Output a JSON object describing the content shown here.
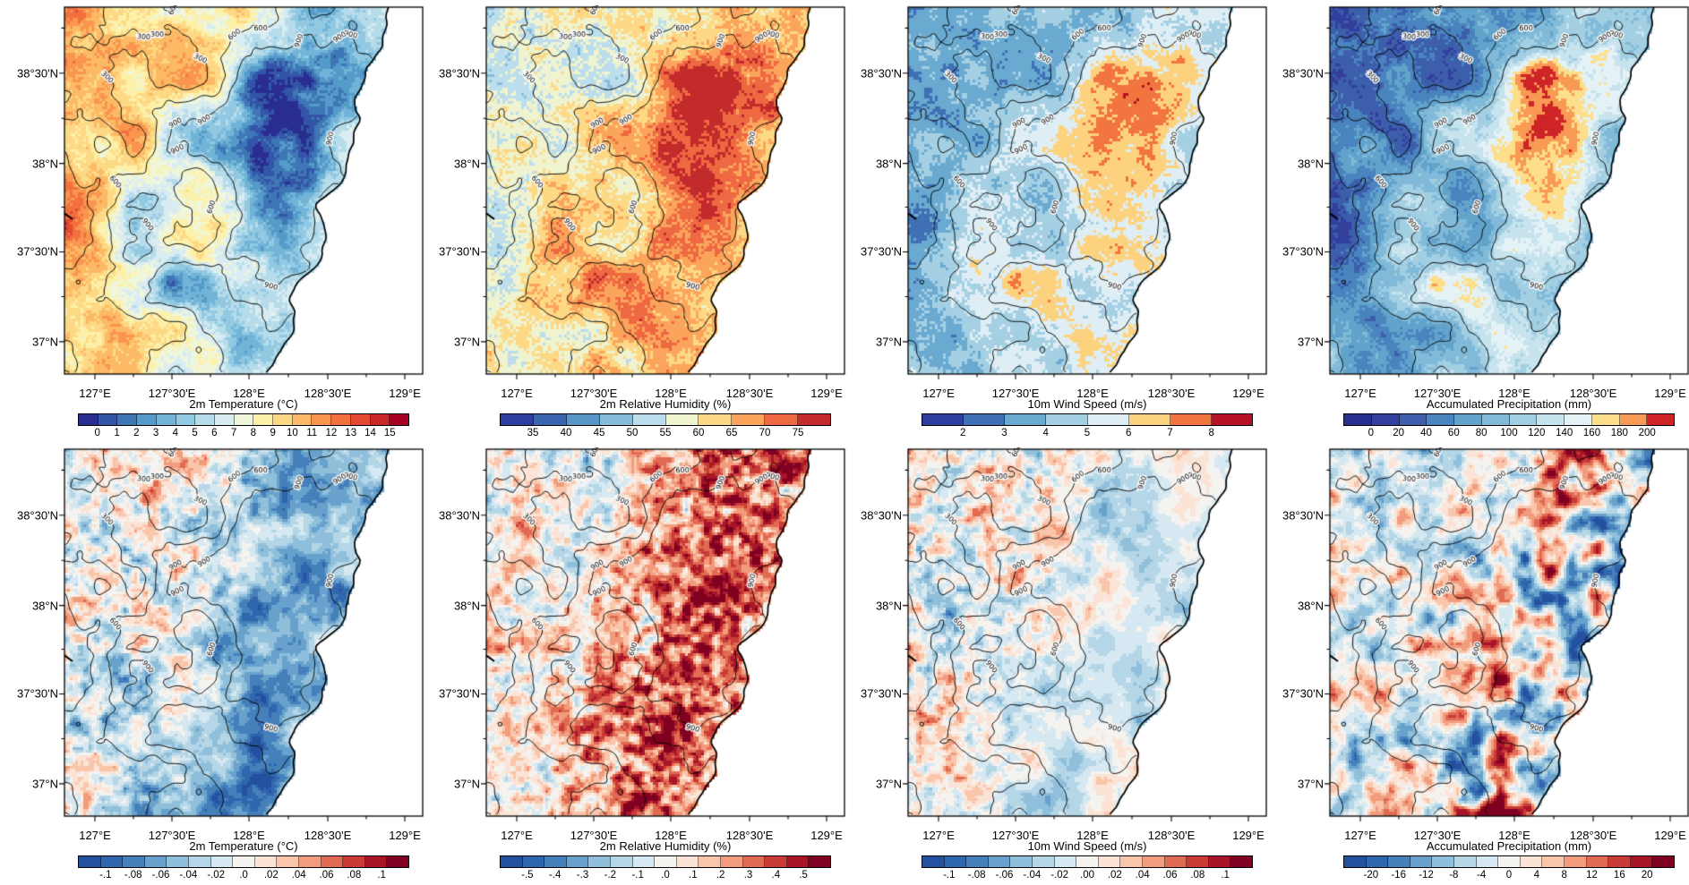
{
  "figure": {
    "axes": {
      "lat_labels": [
        "38°30'N",
        "38°N",
        "37°30'N",
        "37°N"
      ],
      "lon_labels": [
        "127°E",
        "127°30'E",
        "128°E",
        "128°30'E",
        "129°E"
      ]
    },
    "contour_labels": [
      "300",
      "600",
      "900"
    ],
    "panels": [
      {
        "id": "t2m",
        "title": "2m Temperature  (°C)",
        "ticks": [
          "0",
          "1",
          "2",
          "3",
          "4",
          "5",
          "6",
          "7",
          "8",
          "9",
          "10",
          "11",
          "12",
          "13",
          "14",
          "15"
        ],
        "colors": [
          "#2a2d90",
          "#3355a7",
          "#3f76b6",
          "#559bc9",
          "#71b4d7",
          "#92c9e2",
          "#b6dcea",
          "#d9ecf2",
          "#eff6da",
          "#fdf0a9",
          "#fdd985",
          "#fcba66",
          "#f9954e",
          "#f26f3e",
          "#e34a31",
          "#c82827",
          "#a50021"
        ]
      },
      {
        "id": "rh2m",
        "title": "2m Relative Humidity  (%)",
        "ticks": [
          "35",
          "40",
          "45",
          "50",
          "55",
          "60",
          "65",
          "70",
          "75"
        ],
        "colors": [
          "#2f3d9e",
          "#3a66af",
          "#5795c5",
          "#85bcda",
          "#bcdeec",
          "#eff3d0",
          "#fdd985",
          "#fba55c",
          "#ee6841",
          "#c22a2b"
        ]
      },
      {
        "id": "ws10m",
        "title": "10m Wind Speed  (m/s)",
        "ticks": [
          "2",
          "3",
          "4",
          "5",
          "6",
          "7",
          "8"
        ],
        "colors": [
          "#2f3d9e",
          "#3f6fb4",
          "#6aaad0",
          "#a5d0e4",
          "#dfeef4",
          "#fdd27e",
          "#f2753f",
          "#b51225"
        ]
      },
      {
        "id": "precip",
        "title": "Accumulated Precipitation  (mm)",
        "ticks": [
          "0",
          "20",
          "40",
          "60",
          "80",
          "100",
          "120",
          "140",
          "160",
          "180",
          "200"
        ],
        "colors": [
          "#28308f",
          "#323f9d",
          "#3c5eab",
          "#4a84be",
          "#62a3cc",
          "#81bad8",
          "#a3cfe3",
          "#c6e3ee",
          "#e4f2f5",
          "#fdde8a",
          "#f89a54",
          "#cf2427"
        ]
      },
      {
        "id": "t2m_diff",
        "title": "2m Temperature  (°C)",
        "ticks": [
          "-.1",
          "-.08",
          "-.06",
          "-.04",
          "-.02",
          ".0",
          ".02",
          ".04",
          ".06",
          ".08",
          ".1"
        ],
        "colors": [
          "#2450a0",
          "#2f66ad",
          "#4580bb",
          "#68a2cc",
          "#8fbfda",
          "#b4d6e7",
          "#d6e8f1",
          "#f5f3f0",
          "#fbe4d6",
          "#f9c6ab",
          "#f29c7d",
          "#e16b52",
          "#c93b36",
          "#a81529",
          "#7f0020"
        ]
      },
      {
        "id": "rh2m_diff",
        "title": "2m Relative Humidity  (%)",
        "ticks": [
          "-.5",
          "-.4",
          "-.3",
          "-.2",
          "-.1",
          ".0",
          ".1",
          ".2",
          ".3",
          ".4",
          ".5"
        ],
        "colors": [
          "#2450a0",
          "#2f66ad",
          "#4580bb",
          "#68a2cc",
          "#8fbfda",
          "#b4d6e7",
          "#d6e8f1",
          "#f5f3f0",
          "#fbe4d6",
          "#f9c6ab",
          "#f29c7d",
          "#e16b52",
          "#c93b36",
          "#a81529",
          "#7f0020"
        ]
      },
      {
        "id": "ws10m_diff",
        "title": "10m Wind Speed  (m/s)",
        "ticks": [
          "-.1",
          "-.08",
          "-.06",
          "-.04",
          "-.02",
          ".00",
          ".02",
          ".04",
          ".06",
          ".08",
          ".1"
        ],
        "colors": [
          "#2450a0",
          "#2f66ad",
          "#4580bb",
          "#68a2cc",
          "#8fbfda",
          "#b4d6e7",
          "#d6e8f1",
          "#f5f3f0",
          "#fbe4d6",
          "#f9c6ab",
          "#f29c7d",
          "#e16b52",
          "#c93b36",
          "#a81529",
          "#7f0020"
        ]
      },
      {
        "id": "precip_diff",
        "title": "Accumulated Precipitation  (mm)",
        "ticks": [
          "-20",
          "-16",
          "-12",
          "-8",
          "-4",
          "0",
          "4",
          "8",
          "12",
          "16",
          "20"
        ],
        "colors": [
          "#2450a0",
          "#2f66ad",
          "#4580bb",
          "#68a2cc",
          "#8fbfda",
          "#b4d6e7",
          "#d6e8f1",
          "#f5f3f0",
          "#fbe4d6",
          "#f9c6ab",
          "#f29c7d",
          "#e16b52",
          "#c93b36",
          "#a81529",
          "#7f0020"
        ]
      }
    ]
  },
  "chart_data": {
    "type": "heatmap",
    "layout": {
      "rows": 2,
      "cols": 4,
      "note": "top row: field maps with terrain contours over coastal domain; bottom row: difference maps of the same variables with identical terrain contours"
    },
    "x_ticks": [
      "127°E",
      "127°30'E",
      "128°E",
      "128°30'E",
      "129°E"
    ],
    "y_ticks": [
      "38°30'N",
      "38°N",
      "37°30'N",
      "37°N"
    ],
    "terrain_contour_levels": [
      300,
      600,
      900
    ],
    "panels": [
      {
        "row": 1,
        "col": 1,
        "title": "2m Temperature (°C)",
        "colorbar_ticks": [
          0,
          1,
          2,
          3,
          4,
          5,
          6,
          7,
          8,
          9,
          10,
          11,
          12,
          13,
          14,
          15
        ],
        "pattern": "12-15 °C over western and southwestern lowlands, 0-6 °C along the coastal mountain range in the east"
      },
      {
        "row": 1,
        "col": 2,
        "title": "2m Relative Humidity (%)",
        "colorbar_ticks": [
          35,
          40,
          45,
          50,
          55,
          60,
          65,
          70,
          75
        ],
        "pattern": "45-55 % over the interior, 65-75 % along the coastal mountains and shoreline"
      },
      {
        "row": 1,
        "col": 3,
        "title": "10m Wind Speed (m/s)",
        "colorbar_ticks": [
          2,
          3,
          4,
          5,
          6,
          7,
          8
        ],
        "pattern": "2-4 m/s over most of the interior, 6-8 m/s along the mountain ridge and coast"
      },
      {
        "row": 1,
        "col": 4,
        "title": "Accumulated Precipitation (mm)",
        "colorbar_ticks": [
          0,
          20,
          40,
          60,
          80,
          100,
          120,
          140,
          160,
          180,
          200
        ],
        "pattern": "20-80 mm inland (darkest blue in the west), 140-200 mm along the coastal mountains"
      },
      {
        "row": 2,
        "col": 1,
        "title": "2m Temperature (°C)",
        "colorbar_ticks": [
          -0.1,
          -0.08,
          -0.06,
          -0.04,
          -0.02,
          0,
          0.02,
          0.04,
          0.06,
          0.08,
          0.1
        ],
        "pattern": "negative (blue) differences concentrated along the mountain ridge, weak mixed noise elsewhere"
      },
      {
        "row": 2,
        "col": 2,
        "title": "2m Relative Humidity (%)",
        "colorbar_ticks": [
          -0.5,
          -0.4,
          -0.3,
          -0.2,
          -0.1,
          0,
          0.1,
          0.2,
          0.3,
          0.4,
          0.5
        ],
        "pattern": "positive (red) differences along the mountain ridge, weak mixed noise elsewhere"
      },
      {
        "row": 2,
        "col": 3,
        "title": "10m Wind Speed (m/s)",
        "colorbar_ticks": [
          -0.1,
          -0.08,
          -0.06,
          -0.04,
          -0.02,
          0,
          0.02,
          0.04,
          0.06,
          0.08,
          0.1
        ],
        "pattern": "small mixed differences, slightly negative along the ridge"
      },
      {
        "row": 2,
        "col": 4,
        "title": "Accumulated Precipitation (mm)",
        "colorbar_ticks": [
          -20,
          -16,
          -12,
          -8,
          -4,
          0,
          4,
          8,
          12,
          16,
          20
        ],
        "pattern": "large alternating red/blue patches, strongest near the coastal mountains"
      }
    ]
  }
}
